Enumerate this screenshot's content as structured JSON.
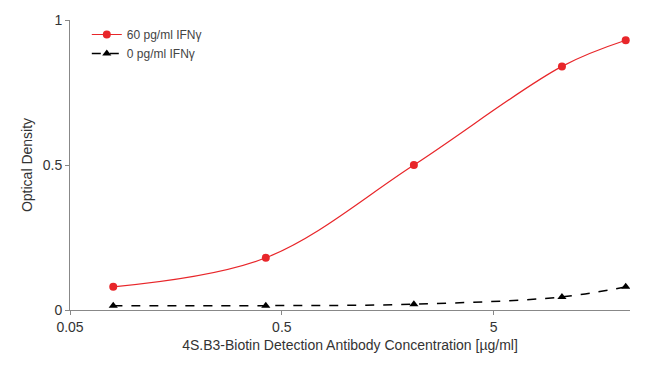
{
  "chart_data": {
    "type": "line",
    "x_label": "4S.B3-Biotin Detection Antibody Concentration [µg/ml]",
    "y_label": "Optical Density",
    "x": [
      0.08,
      0.42,
      2.1,
      10.5,
      21
    ],
    "series": [
      {
        "name": "60 pg/ml IFNγ",
        "color": "#e8262a",
        "marker": "circle",
        "line_style": "solid",
        "values": [
          0.08,
          0.18,
          0.5,
          0.84,
          0.93
        ]
      },
      {
        "name": "0 pg/ml IFNγ",
        "color": "#000000",
        "marker": "triangle-up",
        "line_style": "dash",
        "values": [
          0.015,
          0.015,
          0.02,
          0.045,
          0.08
        ]
      }
    ],
    "log": "x",
    "xlim": [
      0.05,
      22
    ],
    "xticks": [
      0.05,
      0.5,
      5
    ],
    "ylim": [
      0,
      1
    ],
    "yticks": [
      0,
      0.5,
      1
    ],
    "grid": false,
    "legend": "top-left"
  }
}
